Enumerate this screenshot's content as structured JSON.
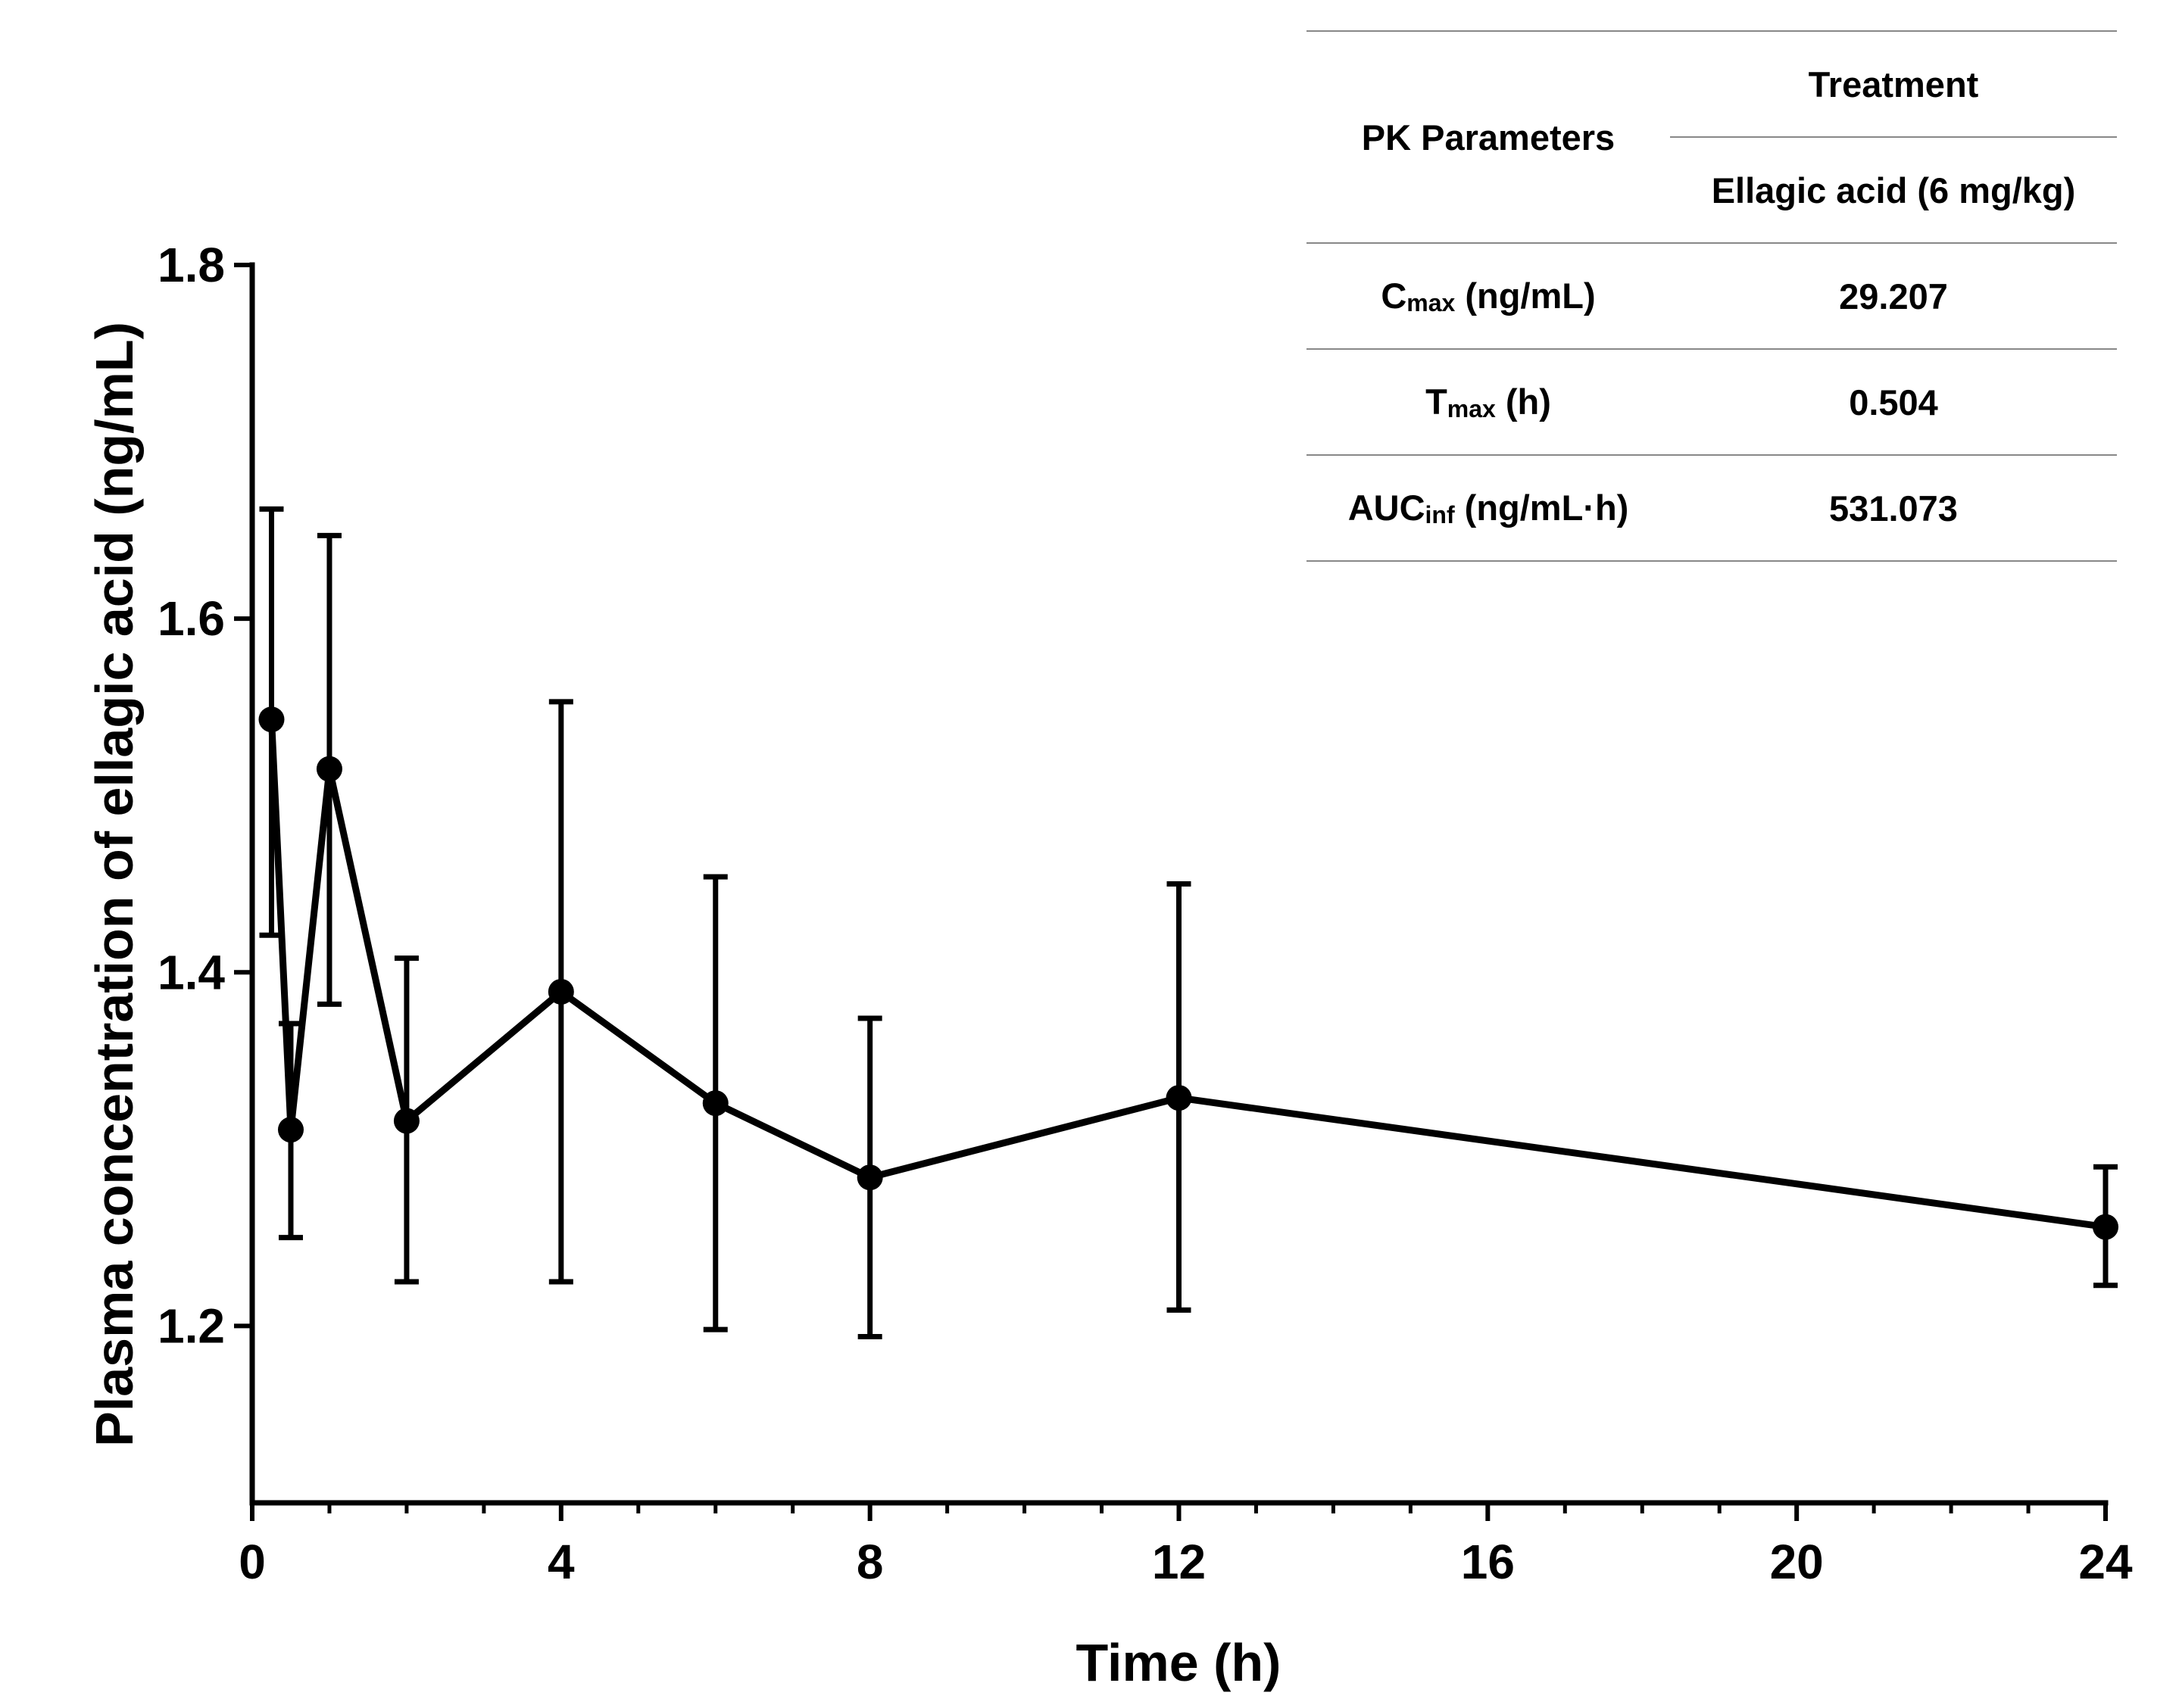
{
  "chart_data": {
    "type": "line",
    "title": "",
    "xlabel": "Time (h)",
    "ylabel": "Plasma concentration of ellagic acid (ng/mL)",
    "xlim": [
      0,
      24
    ],
    "ylim": [
      1.1,
      1.8
    ],
    "x_ticks": [
      "0",
      "4",
      "8",
      "12",
      "16",
      "20",
      "24"
    ],
    "y_ticks": [
      "1.2",
      "1.4",
      "1.6",
      "1.8"
    ],
    "grid": false,
    "legend": "none",
    "series": [
      {
        "x": [
          0.25,
          0.5,
          1,
          2,
          4,
          6,
          8,
          12,
          24
        ],
        "y": [
          1.543,
          1.311,
          1.515,
          1.316,
          1.389,
          1.326,
          1.284,
          1.329,
          1.256
        ],
        "error_upper": [
          1.662,
          1.371,
          1.647,
          1.408,
          1.553,
          1.454,
          1.374,
          1.45,
          1.29
        ],
        "error_lower": [
          1.421,
          1.25,
          1.382,
          1.225,
          1.225,
          1.198,
          1.194,
          1.209,
          1.223
        ]
      }
    ],
    "inset_table": {
      "header_col1": "PK Parameters",
      "header_group": "Treatment",
      "header_sub": "Ellagic acid (6 mg/kg)",
      "rows": [
        {
          "param_base": "C",
          "param_sub": "max",
          "param_unit": " (ng/mL)",
          "value": "29.207"
        },
        {
          "param_base": "T",
          "param_sub": "max",
          "param_unit": " (h)",
          "value": "0.504"
        },
        {
          "param_base": "AUC",
          "param_sub": "inf",
          "param_unit": " (ng/mL·h)",
          "value": "531.073"
        }
      ]
    }
  }
}
